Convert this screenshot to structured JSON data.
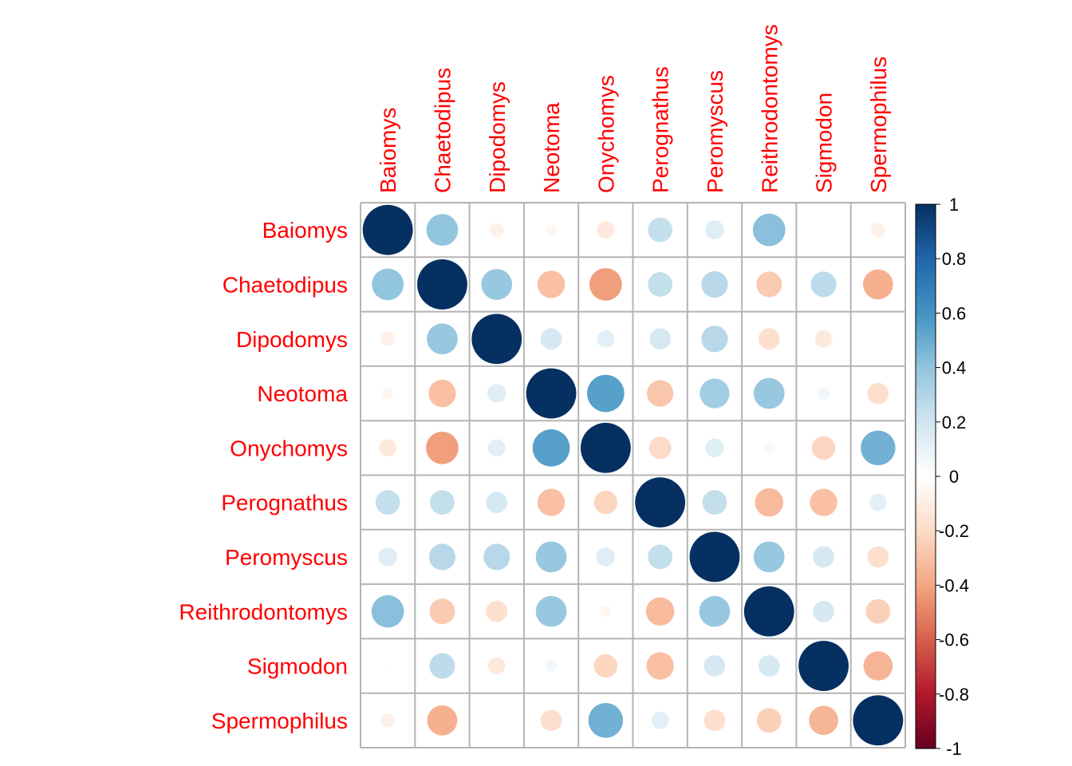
{
  "chart_data": {
    "type": "heatmap",
    "title": "",
    "xlabel": "",
    "ylabel": "",
    "labels": [
      "Baiomys",
      "Chaetodipus",
      "Dipodomys",
      "Neotoma",
      "Onychomys",
      "Perognathus",
      "Peromyscus",
      "Reithrodontomys",
      "Sigmodon",
      "Spermophilus"
    ],
    "matrix": [
      [
        1.0,
        0.4,
        -0.08,
        -0.05,
        -0.12,
        0.24,
        0.14,
        0.42,
        0.01,
        -0.08
      ],
      [
        0.4,
        1.0,
        0.38,
        -0.3,
        -0.42,
        0.24,
        0.28,
        -0.26,
        0.26,
        -0.36
      ],
      [
        -0.08,
        0.38,
        1.0,
        0.18,
        0.12,
        0.18,
        0.28,
        -0.18,
        -0.12,
        0.0
      ],
      [
        -0.05,
        -0.3,
        0.14,
        1.0,
        0.55,
        -0.28,
        0.35,
        0.38,
        0.06,
        -0.18
      ],
      [
        -0.12,
        -0.42,
        0.12,
        0.55,
        1.0,
        -0.2,
        0.14,
        -0.05,
        -0.22,
        0.48
      ],
      [
        0.24,
        0.24,
        0.18,
        -0.3,
        -0.22,
        1.0,
        0.24,
        -0.32,
        -0.3,
        0.12
      ],
      [
        0.14,
        0.28,
        0.28,
        0.38,
        0.14,
        0.24,
        1.0,
        0.38,
        0.18,
        -0.18
      ],
      [
        0.42,
        -0.26,
        -0.18,
        0.38,
        -0.05,
        -0.32,
        0.38,
        1.0,
        0.18,
        -0.24
      ],
      [
        0.01,
        0.26,
        -0.12,
        0.06,
        -0.22,
        -0.3,
        0.18,
        0.18,
        1.0,
        -0.34
      ],
      [
        -0.08,
        -0.36,
        0.0,
        -0.18,
        0.48,
        0.12,
        -0.18,
        -0.24,
        -0.34,
        1.0
      ]
    ],
    "colorbar": {
      "ticks": [
        "1",
        "0.8",
        "0.6",
        "0.4",
        "0.2",
        "0",
        "-0.2",
        "-0.4",
        "-0.6",
        "-0.8",
        "-1"
      ],
      "range": [
        -1,
        1
      ]
    },
    "label_color": "#ff0000",
    "grid_color": "#b4b4b4",
    "palette": [
      "#67001f",
      "#b2182b",
      "#d6604d",
      "#f4a582",
      "#fddbc7",
      "#ffffff",
      "#d1e5f0",
      "#92c5de",
      "#4393c3",
      "#2166ac",
      "#053061"
    ]
  }
}
